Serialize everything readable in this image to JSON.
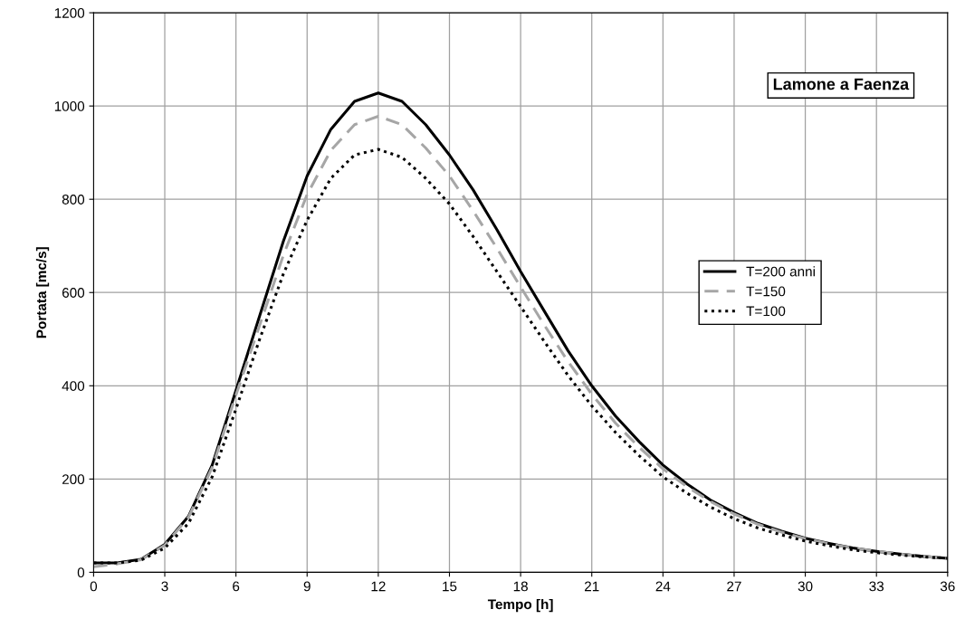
{
  "chart_data": {
    "type": "line",
    "xlabel": "Tempo [h]",
    "ylabel": "Portata [mc/s]",
    "annotations": [
      "Lamone a Faenza"
    ],
    "x": [
      0,
      1,
      2,
      3,
      4,
      5,
      6,
      7,
      8,
      9,
      10,
      11,
      12,
      13,
      14,
      15,
      16,
      17,
      18,
      19,
      20,
      21,
      22,
      23,
      24,
      25,
      26,
      27,
      28,
      29,
      30,
      31,
      32,
      33,
      34,
      35,
      36
    ],
    "series": [
      {
        "name": "T=200 anni",
        "color": "#000000",
        "line_style": "solid",
        "values": [
          20,
          20,
          28,
          60,
          120,
          230,
          390,
          550,
          710,
          850,
          950,
          1010,
          1028,
          1010,
          960,
          895,
          820,
          735,
          645,
          560,
          475,
          400,
          335,
          280,
          230,
          190,
          155,
          128,
          105,
          88,
          73,
          62,
          52,
          45,
          39,
          34,
          30
        ]
      },
      {
        "name": "T=150",
        "color": "#a6a6a6",
        "line_style": "dashed",
        "values": [
          12,
          18,
          27,
          58,
          118,
          225,
          380,
          530,
          680,
          810,
          905,
          960,
          978,
          960,
          910,
          850,
          775,
          695,
          612,
          530,
          452,
          382,
          320,
          268,
          222,
          184,
          152,
          125,
          103,
          86,
          72,
          61,
          52,
          45,
          39,
          34,
          30
        ]
      },
      {
        "name": "T=100",
        "color": "#000000",
        "line_style": "dotted",
        "values": [
          20,
          20,
          26,
          52,
          105,
          205,
          350,
          500,
          640,
          755,
          845,
          895,
          907,
          890,
          845,
          790,
          720,
          645,
          570,
          495,
          422,
          357,
          300,
          250,
          205,
          170,
          140,
          115,
          95,
          80,
          67,
          57,
          48,
          42,
          37,
          33,
          30
        ]
      }
    ],
    "xlim": [
      0,
      36
    ],
    "xticks": [
      0,
      3,
      6,
      9,
      12,
      15,
      18,
      21,
      24,
      27,
      30,
      33,
      36
    ],
    "ylim": [
      0,
      1200
    ],
    "yticks": [
      0,
      200,
      400,
      600,
      800,
      1000,
      1200
    ],
    "grid": true,
    "legend": "right",
    "marker": "none"
  }
}
